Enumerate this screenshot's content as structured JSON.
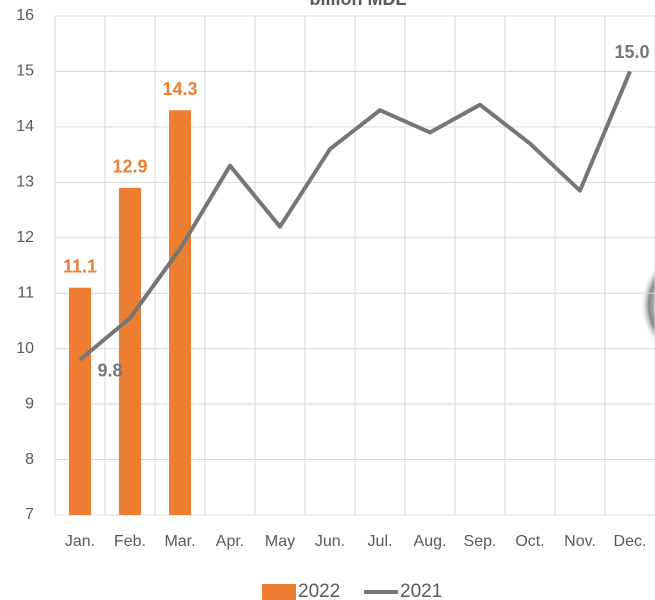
{
  "chart_data": {
    "type": "bar_line",
    "title": "billion MDL",
    "categories": [
      "Jan.",
      "Feb.",
      "Mar.",
      "Apr.",
      "May",
      "Jun.",
      "Jul.",
      "Aug.",
      "Sep.",
      "Oct.",
      "Nov.",
      "Dec."
    ],
    "series": [
      {
        "name": "2022",
        "type": "bar",
        "color": "#ed7d31",
        "values": [
          11.1,
          12.9,
          14.3,
          null,
          null,
          null,
          null,
          null,
          null,
          null,
          null,
          null
        ]
      },
      {
        "name": "2021",
        "type": "line",
        "color": "#767676",
        "values": [
          9.8,
          10.55,
          11.8,
          13.3,
          12.2,
          13.6,
          14.3,
          13.9,
          14.4,
          13.7,
          12.85,
          15.0
        ],
        "value_labels": [
          "9.8",
          null,
          null,
          null,
          null,
          null,
          null,
          null,
          null,
          null,
          null,
          "15.0"
        ]
      }
    ],
    "ylim": [
      7,
      16
    ],
    "yticks": [
      7,
      8,
      9,
      10,
      11,
      12,
      13,
      14,
      15,
      16
    ],
    "grid": true,
    "legend": "bottom"
  }
}
